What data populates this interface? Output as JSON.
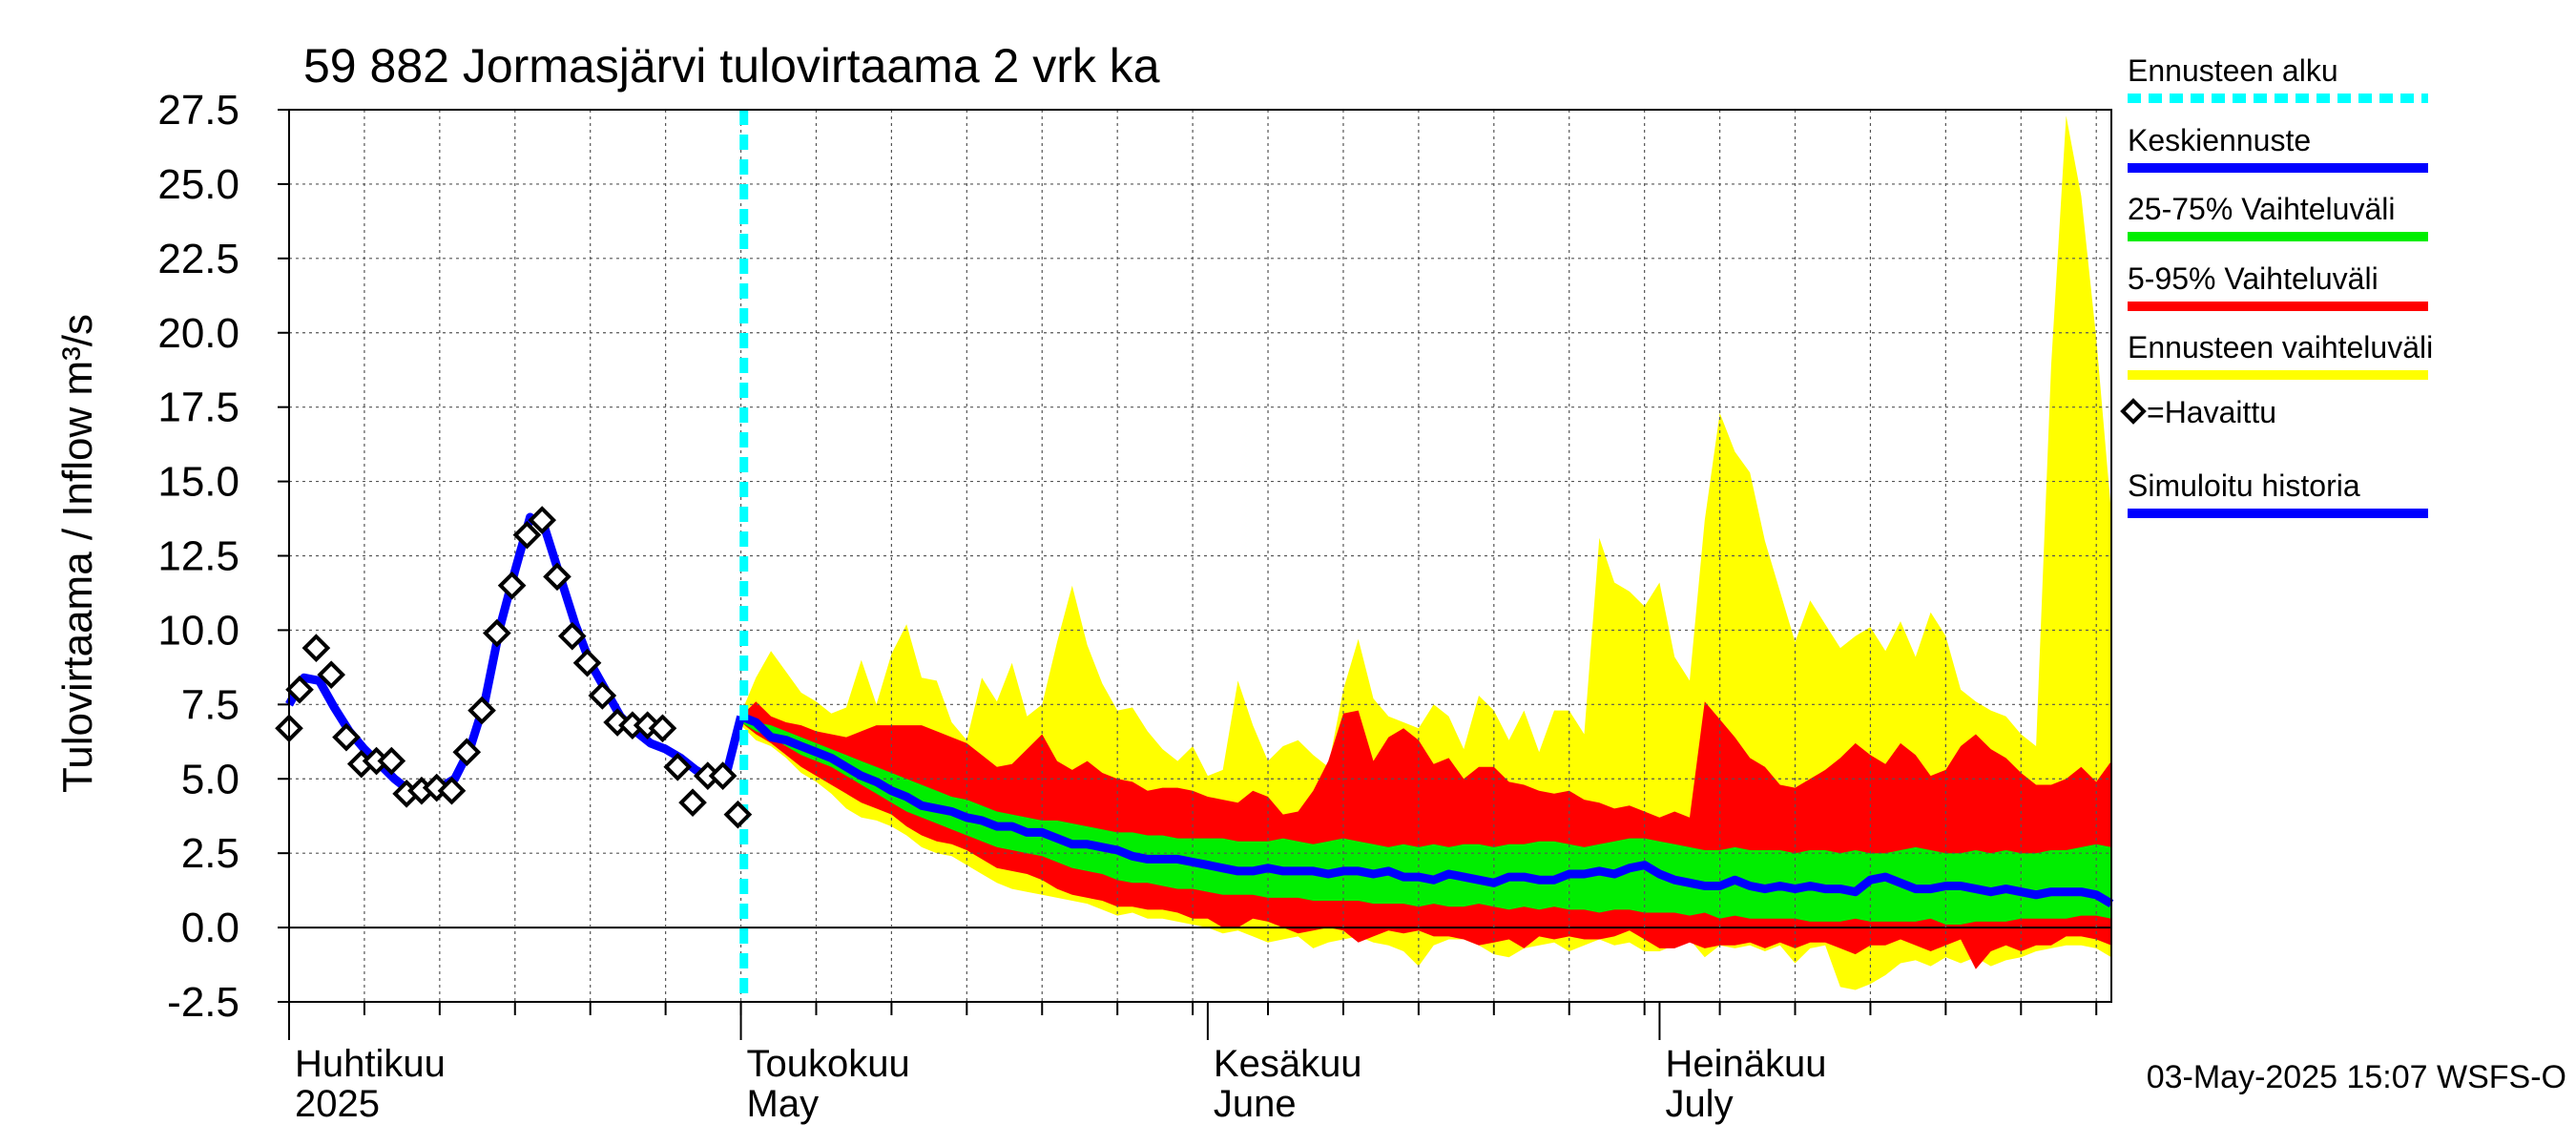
{
  "chart_data": {
    "type": "area",
    "title": "59 882 Jormasjärvi tulovirtaama 2 vrk ka",
    "ylabel": "Tulovirtaama / Inflow    m³/s",
    "ylim": [
      -2.5,
      27.5
    ],
    "yticks": [
      -2.5,
      0.0,
      2.5,
      5.0,
      7.5,
      10.0,
      12.5,
      15.0,
      17.5,
      20.0,
      22.5,
      25.0,
      27.5
    ],
    "ytick_labels": [
      "-2.5",
      "0.0",
      "2.5",
      "5.0",
      "7.5",
      "10.0",
      "12.5",
      "15.0",
      "17.5",
      "20.0",
      "22.5",
      "25.0",
      "27.5"
    ],
    "x_unit": "day offset from 2025-04-01",
    "xlim": [
      0,
      121
    ],
    "month_ticks": [
      0,
      30,
      61,
      91
    ],
    "week_ticks": [
      5,
      10,
      15,
      20,
      25,
      30,
      35,
      40,
      45,
      50,
      55,
      60,
      65,
      70,
      75,
      80,
      85,
      90,
      95,
      100,
      105,
      110,
      115,
      120
    ],
    "month_labels": [
      {
        "x": 0,
        "fi": "Huhtikuu",
        "en": "2025"
      },
      {
        "x": 30,
        "fi": "Toukokuu",
        "en": "May"
      },
      {
        "x": 61,
        "fi": "Kesäkuu",
        "en": "June"
      },
      {
        "x": 91,
        "fi": "Heinäkuu",
        "en": "July"
      }
    ],
    "forecast_start": 30.2,
    "observed": {
      "x": [
        0,
        0.7,
        1.8,
        2.8,
        3.8,
        4.8,
        5.8,
        6.8,
        7.8,
        8.8,
        9.8,
        10.8,
        11.8,
        12.8,
        13.8,
        14.8,
        15.8,
        16.8,
        17.8,
        18.8,
        19.8,
        20.8,
        21.8,
        22.8,
        23.8,
        24.8,
        25.8,
        26.8,
        27.8,
        28.8,
        29.8
      ],
      "y": [
        6.7,
        8.0,
        9.4,
        8.5,
        6.4,
        5.5,
        5.6,
        5.6,
        4.5,
        4.6,
        4.7,
        4.6,
        5.9,
        7.3,
        9.9,
        11.5,
        13.2,
        13.7,
        11.8,
        9.8,
        8.9,
        7.8,
        6.9,
        6.8,
        6.8,
        6.7,
        5.4,
        4.2,
        5.1,
        5.1,
        3.8
      ]
    },
    "simulated_history": {
      "x": [
        0,
        1,
        2,
        3,
        4,
        5,
        6,
        7,
        8,
        9,
        10,
        11,
        12,
        13,
        14,
        15,
        16,
        17,
        18,
        19,
        20,
        21,
        22,
        23,
        24,
        25,
        26,
        27,
        28,
        29,
        30
      ],
      "y": [
        7.5,
        8.4,
        8.3,
        7.4,
        6.6,
        6.0,
        5.5,
        5.0,
        4.6,
        4.6,
        4.7,
        5.0,
        6.0,
        7.6,
        10.1,
        12.0,
        13.8,
        13.4,
        11.8,
        10.2,
        8.9,
        8.0,
        7.1,
        6.6,
        6.2,
        6.0,
        5.7,
        5.3,
        5.0,
        5.1,
        7.1
      ]
    },
    "series": [
      {
        "name": "Ennusteen vaihteluväli",
        "color": "#ffff00",
        "x": [
          30,
          31,
          32,
          33,
          34,
          35,
          36,
          37,
          38,
          39,
          40,
          41,
          42,
          43,
          44,
          45,
          46,
          47,
          48,
          49,
          50,
          51,
          52,
          53,
          54,
          55,
          56,
          57,
          58,
          59,
          60,
          61,
          62,
          63,
          64,
          65,
          66,
          67,
          68,
          69,
          70,
          71,
          72,
          73,
          74,
          75,
          76,
          77,
          78,
          79,
          80,
          81,
          82,
          83,
          84,
          85,
          86,
          87,
          88,
          89,
          90,
          91,
          92,
          93,
          94,
          95,
          96,
          97,
          98,
          99,
          100,
          101,
          102,
          103,
          104,
          105,
          106,
          107,
          108,
          109,
          110,
          111,
          112,
          113,
          114,
          115,
          116,
          117,
          118,
          119,
          120,
          121
        ],
        "upper": [
          7.2,
          8.4,
          9.3,
          8.6,
          7.9,
          7.6,
          7.2,
          7.4,
          9.0,
          7.5,
          9.2,
          10.2,
          8.4,
          8.3,
          6.9,
          6.3,
          8.4,
          7.6,
          8.9,
          7.1,
          7.5,
          9.6,
          11.5,
          9.5,
          8.2,
          7.3,
          7.4,
          6.6,
          6.0,
          5.6,
          6.1,
          5.1,
          5.3,
          8.3,
          6.8,
          5.6,
          6.1,
          6.3,
          5.8,
          5.4,
          8.0,
          9.7,
          7.7,
          7.1,
          6.9,
          6.7,
          7.5,
          7.1,
          6.0,
          7.8,
          7.3,
          6.3,
          7.3,
          5.9,
          7.3,
          7.3,
          6.5,
          13.1,
          11.6,
          11.3,
          10.8,
          11.6,
          9.1,
          8.3,
          13.7,
          17.3,
          16.0,
          15.3,
          13.0,
          11.3,
          9.6,
          11.0,
          10.2,
          9.4,
          9.8,
          10.1,
          9.3,
          10.3,
          9.1,
          10.6,
          9.8,
          8.0,
          7.6,
          7.3,
          7.1,
          6.5,
          6.1,
          18.9,
          27.3,
          24.6,
          19.8,
          13.9
        ],
        "lower": [
          6.8,
          6.3,
          6.1,
          5.7,
          5.2,
          4.9,
          4.5,
          4.0,
          3.7,
          3.6,
          3.4,
          3.1,
          2.7,
          2.5,
          2.4,
          2.1,
          1.8,
          1.5,
          1.3,
          1.2,
          1.1,
          1.0,
          0.9,
          0.8,
          0.6,
          0.4,
          0.5,
          0.3,
          0.3,
          0.2,
          0.1,
          0.0,
          -0.2,
          -0.1,
          -0.3,
          -0.5,
          -0.4,
          -0.3,
          -0.7,
          -0.5,
          -0.4,
          -0.3,
          -0.5,
          -0.6,
          -0.8,
          -1.3,
          -0.6,
          -0.4,
          -0.4,
          -0.6,
          -0.9,
          -1.0,
          -0.7,
          -0.6,
          -0.5,
          -0.8,
          -0.6,
          -0.4,
          -0.6,
          -0.5,
          -0.8,
          -0.8,
          -0.6,
          -0.4,
          -1.0,
          -0.6,
          -0.7,
          -0.6,
          -0.8,
          -0.6,
          -1.2,
          -0.7,
          -0.6,
          -2.0,
          -2.1,
          -1.9,
          -1.6,
          -1.2,
          -1.1,
          -1.3,
          -1.0,
          -1.2,
          -1.0,
          -1.3,
          -1.1,
          -1.0,
          -0.8,
          -0.7,
          -0.6,
          -0.6,
          -0.7,
          -1.0
        ]
      },
      {
        "name": "5-95% Vaihteluväli",
        "color": "#ff0000",
        "x": [
          30,
          31,
          32,
          33,
          34,
          35,
          36,
          37,
          38,
          39,
          40,
          41,
          42,
          43,
          44,
          45,
          46,
          47,
          48,
          49,
          50,
          51,
          52,
          53,
          54,
          55,
          56,
          57,
          58,
          59,
          60,
          61,
          62,
          63,
          64,
          65,
          66,
          67,
          68,
          69,
          70,
          71,
          72,
          73,
          74,
          75,
          76,
          77,
          78,
          79,
          80,
          81,
          82,
          83,
          84,
          85,
          86,
          87,
          88,
          89,
          90,
          91,
          92,
          93,
          94,
          95,
          96,
          97,
          98,
          99,
          100,
          101,
          102,
          103,
          104,
          105,
          106,
          107,
          108,
          109,
          110,
          111,
          112,
          113,
          114,
          115,
          116,
          117,
          118,
          119,
          120,
          121
        ],
        "upper": [
          7.1,
          7.6,
          7.1,
          6.9,
          6.8,
          6.6,
          6.5,
          6.4,
          6.6,
          6.8,
          6.8,
          6.8,
          6.8,
          6.6,
          6.4,
          6.2,
          5.8,
          5.4,
          5.5,
          6.0,
          6.5,
          5.6,
          5.3,
          5.6,
          5.2,
          5.0,
          4.9,
          4.6,
          4.7,
          4.7,
          4.6,
          4.4,
          4.3,
          4.2,
          4.6,
          4.4,
          3.8,
          3.9,
          4.6,
          5.6,
          7.2,
          7.3,
          5.6,
          6.4,
          6.7,
          6.3,
          5.5,
          5.7,
          5.0,
          5.4,
          5.4,
          4.9,
          4.8,
          4.6,
          4.5,
          4.6,
          4.3,
          4.2,
          4.0,
          4.1,
          3.9,
          3.7,
          3.9,
          3.7,
          7.6,
          7.0,
          6.4,
          5.7,
          5.4,
          4.8,
          4.7,
          5.0,
          5.3,
          5.7,
          6.2,
          5.8,
          5.5,
          6.2,
          5.8,
          5.1,
          5.3,
          6.1,
          6.5,
          6.0,
          5.7,
          5.2,
          4.8,
          4.8,
          5.0,
          5.4,
          4.9,
          5.6
        ],
        "lower": [
          6.9,
          6.5,
          6.2,
          5.8,
          5.4,
          5.1,
          4.8,
          4.5,
          4.2,
          4.0,
          3.8,
          3.4,
          3.1,
          2.9,
          2.8,
          2.6,
          2.3,
          2.0,
          1.9,
          1.8,
          1.6,
          1.3,
          1.1,
          1.0,
          0.9,
          0.7,
          0.7,
          0.6,
          0.6,
          0.5,
          0.3,
          0.3,
          0.0,
          0.0,
          0.3,
          0.2,
          0.0,
          -0.2,
          -0.1,
          0.0,
          -0.1,
          -0.5,
          -0.3,
          -0.1,
          -0.2,
          -0.1,
          -0.3,
          -0.3,
          -0.4,
          -0.6,
          -0.5,
          -0.4,
          -0.7,
          -0.3,
          -0.4,
          -0.3,
          -0.4,
          -0.4,
          -0.3,
          -0.1,
          -0.4,
          -0.7,
          -0.7,
          -0.5,
          -0.7,
          -0.6,
          -0.6,
          -0.5,
          -0.7,
          -0.5,
          -0.7,
          -0.5,
          -0.5,
          -0.7,
          -0.9,
          -0.6,
          -0.6,
          -0.4,
          -0.6,
          -0.8,
          -0.6,
          -0.4,
          -1.4,
          -0.8,
          -0.6,
          -0.8,
          -0.6,
          -0.6,
          -0.3,
          -0.3,
          -0.4,
          -0.6
        ]
      },
      {
        "name": "25-75% Vaihteluväli",
        "color": "#00ee00",
        "x": [
          30,
          31,
          32,
          33,
          34,
          35,
          36,
          37,
          38,
          39,
          40,
          41,
          42,
          43,
          44,
          45,
          46,
          47,
          48,
          49,
          50,
          51,
          52,
          53,
          54,
          55,
          56,
          57,
          58,
          59,
          60,
          61,
          62,
          63,
          64,
          65,
          66,
          67,
          68,
          69,
          70,
          71,
          72,
          73,
          74,
          75,
          76,
          77,
          78,
          79,
          80,
          81,
          82,
          83,
          84,
          85,
          86,
          87,
          88,
          89,
          90,
          91,
          92,
          93,
          94,
          95,
          96,
          97,
          98,
          99,
          100,
          101,
          102,
          103,
          104,
          105,
          106,
          107,
          108,
          109,
          110,
          111,
          112,
          113,
          114,
          115,
          116,
          117,
          118,
          119,
          120,
          121
        ],
        "upper": [
          7.1,
          6.9,
          6.8,
          6.6,
          6.4,
          6.2,
          6.0,
          5.8,
          5.6,
          5.4,
          5.2,
          5.0,
          4.8,
          4.6,
          4.4,
          4.3,
          4.1,
          3.9,
          3.8,
          3.7,
          3.6,
          3.6,
          3.5,
          3.4,
          3.3,
          3.2,
          3.2,
          3.1,
          3.1,
          3.0,
          3.0,
          3.0,
          3.0,
          2.9,
          2.9,
          2.9,
          3.0,
          2.9,
          2.8,
          2.9,
          3.0,
          2.9,
          2.8,
          2.7,
          2.8,
          2.7,
          2.8,
          2.7,
          2.8,
          2.8,
          2.7,
          2.8,
          2.8,
          2.9,
          2.9,
          2.8,
          2.7,
          2.8,
          2.9,
          3.0,
          3.0,
          2.9,
          2.8,
          2.7,
          2.6,
          2.6,
          2.7,
          2.6,
          2.6,
          2.6,
          2.5,
          2.6,
          2.6,
          2.5,
          2.6,
          2.5,
          2.5,
          2.6,
          2.7,
          2.6,
          2.5,
          2.5,
          2.6,
          2.5,
          2.6,
          2.5,
          2.5,
          2.6,
          2.6,
          2.7,
          2.8,
          2.7
        ],
        "lower": [
          6.9,
          6.6,
          6.4,
          6.1,
          5.8,
          5.6,
          5.4,
          5.1,
          4.8,
          4.5,
          4.2,
          3.9,
          3.7,
          3.5,
          3.3,
          3.1,
          2.9,
          2.7,
          2.6,
          2.5,
          2.4,
          2.2,
          2.0,
          1.9,
          1.8,
          1.6,
          1.5,
          1.5,
          1.4,
          1.3,
          1.3,
          1.2,
          1.1,
          1.1,
          1.1,
          1.0,
          1.0,
          1.0,
          0.9,
          0.9,
          0.9,
          0.9,
          0.8,
          0.8,
          0.8,
          0.7,
          0.8,
          0.7,
          0.7,
          0.8,
          0.7,
          0.6,
          0.7,
          0.6,
          0.7,
          0.6,
          0.6,
          0.5,
          0.6,
          0.6,
          0.5,
          0.5,
          0.5,
          0.4,
          0.5,
          0.3,
          0.4,
          0.3,
          0.3,
          0.3,
          0.3,
          0.2,
          0.2,
          0.2,
          0.3,
          0.2,
          0.2,
          0.2,
          0.2,
          0.3,
          0.1,
          0.1,
          0.2,
          0.2,
          0.2,
          0.3,
          0.3,
          0.3,
          0.3,
          0.4,
          0.4,
          0.3
        ]
      },
      {
        "name": "Keskiennuste",
        "color": "#0000ff",
        "x": [
          30,
          31,
          32,
          33,
          34,
          35,
          36,
          37,
          38,
          39,
          40,
          41,
          42,
          43,
          44,
          45,
          46,
          47,
          48,
          49,
          50,
          51,
          52,
          53,
          54,
          55,
          56,
          57,
          58,
          59,
          60,
          61,
          62,
          63,
          64,
          65,
          66,
          67,
          68,
          69,
          70,
          71,
          72,
          73,
          74,
          75,
          76,
          77,
          78,
          79,
          80,
          81,
          82,
          83,
          84,
          85,
          86,
          87,
          88,
          89,
          90,
          91,
          92,
          93,
          94,
          95,
          96,
          97,
          98,
          99,
          100,
          101,
          102,
          103,
          104,
          105,
          106,
          107,
          108,
          109,
          110,
          111,
          112,
          113,
          114,
          115,
          116,
          117,
          118,
          119,
          120,
          121
        ],
        "values": [
          7.1,
          6.9,
          6.4,
          6.3,
          6.1,
          5.9,
          5.7,
          5.4,
          5.1,
          4.9,
          4.6,
          4.4,
          4.1,
          4.0,
          3.9,
          3.7,
          3.6,
          3.4,
          3.4,
          3.2,
          3.2,
          3.0,
          2.8,
          2.8,
          2.7,
          2.6,
          2.4,
          2.3,
          2.3,
          2.3,
          2.2,
          2.1,
          2.0,
          1.9,
          1.9,
          2.0,
          1.9,
          1.9,
          1.9,
          1.8,
          1.9,
          1.9,
          1.8,
          1.9,
          1.7,
          1.7,
          1.6,
          1.8,
          1.7,
          1.6,
          1.5,
          1.7,
          1.7,
          1.6,
          1.6,
          1.8,
          1.8,
          1.9,
          1.8,
          2.0,
          2.1,
          1.8,
          1.6,
          1.5,
          1.4,
          1.4,
          1.6,
          1.4,
          1.3,
          1.4,
          1.3,
          1.4,
          1.3,
          1.3,
          1.2,
          1.6,
          1.7,
          1.5,
          1.3,
          1.3,
          1.4,
          1.4,
          1.3,
          1.2,
          1.3,
          1.2,
          1.1,
          1.2,
          1.2,
          1.2,
          1.1,
          0.8
        ]
      }
    ],
    "legend": [
      {
        "label": "Ennusteen alku",
        "color": "#00ffff",
        "style": "dashed"
      },
      {
        "label": "Keskiennuste",
        "color": "#0000ff",
        "style": "solid"
      },
      {
        "label": "25-75% Vaihteluväli",
        "color": "#00ee00",
        "style": "solid"
      },
      {
        "label": "5-95% Vaihteluväli",
        "color": "#ff0000",
        "style": "solid"
      },
      {
        "label": "Ennusteen vaihteluväli",
        "color": "#ffff00",
        "style": "solid"
      },
      {
        "label": "=Havaittu",
        "color": "#000000",
        "style": "marker"
      },
      {
        "label": "Simuloitu historia",
        "color": "#0000ff",
        "style": "solid"
      }
    ],
    "legend_position": "right",
    "grid": true,
    "footer": "03-May-2025 15:07 WSFS-O"
  }
}
